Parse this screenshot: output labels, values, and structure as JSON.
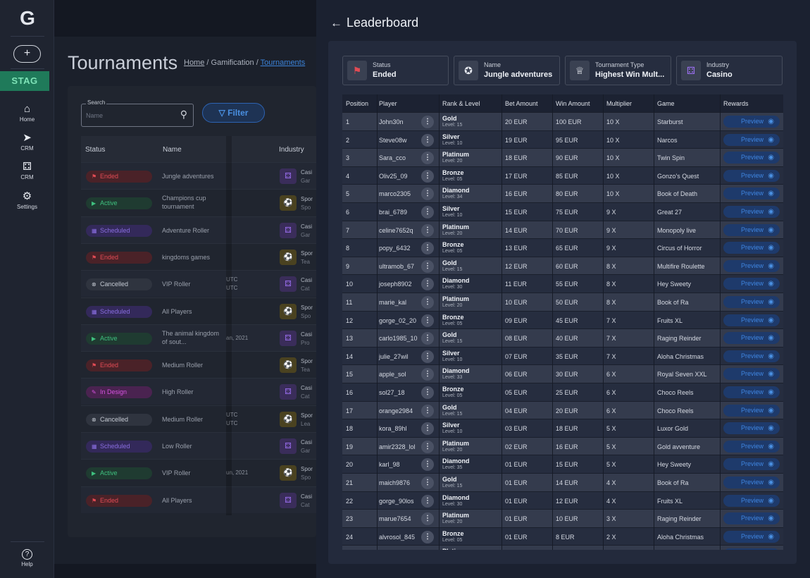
{
  "sidebar": {
    "logo": "G",
    "add_label": "+",
    "env_badge": "STAG",
    "items": [
      {
        "icon": "home-icon",
        "glyph": "⌂",
        "label": "Home"
      },
      {
        "icon": "send-icon",
        "glyph": "➤",
        "label": "CRM"
      },
      {
        "icon": "dice-icon",
        "glyph": "⚃",
        "label": "CRM"
      },
      {
        "icon": "gear-icon",
        "glyph": "⚙",
        "label": "Settings"
      }
    ],
    "help": {
      "icon": "help-icon",
      "glyph": "?",
      "label": "Help"
    }
  },
  "main": {
    "title": "Tournaments",
    "breadcrumb": {
      "home": "Home",
      "sep1": " / ",
      "mid": "Gamification",
      "sep2": " / ",
      "current": "Tournaments"
    },
    "search": {
      "label": "Search",
      "placeholder": "Name"
    },
    "filter_label": "Filter",
    "columns": {
      "status": "Status",
      "name": "Name",
      "industry": "Industry"
    },
    "rows": [
      {
        "status": "Ended",
        "kind": "ended",
        "name": "Jungle adventures",
        "date": "",
        "ind": "cas",
        "ind1": "Casi",
        "ind2": "Gar"
      },
      {
        "status": "Active",
        "kind": "active",
        "name": "Champions cup tournament",
        "date": "",
        "ind": "spo",
        "ind1": "Spor",
        "ind2": "Spo"
      },
      {
        "status": "Scheduled",
        "kind": "scheduled",
        "name": "Adventure Roller",
        "date": "",
        "ind": "cas",
        "ind1": "Casi",
        "ind2": "Gar"
      },
      {
        "status": "Ended",
        "kind": "ended",
        "name": "kingdoms games",
        "date": "",
        "ind": "spo",
        "ind1": "Spor",
        "ind2": "Tea"
      },
      {
        "status": "Cancelled",
        "kind": "cancelled",
        "name": "VIP Roller",
        "date": "UTC\nUTC",
        "ind": "cas",
        "ind1": "Casi",
        "ind2": "Cat"
      },
      {
        "status": "Scheduled",
        "kind": "scheduled",
        "name": "All Players",
        "date": "",
        "ind": "spo",
        "ind1": "Spor",
        "ind2": "Spo"
      },
      {
        "status": "Active",
        "kind": "active",
        "name": "The animal kingdom of sout...",
        "date": "an, 2021",
        "ind": "cas",
        "ind1": "Casi",
        "ind2": "Pro"
      },
      {
        "status": "Ended",
        "kind": "ended",
        "name": "Medium Roller",
        "date": "",
        "ind": "spo",
        "ind1": "Spor",
        "ind2": "Tea"
      },
      {
        "status": "In Design",
        "kind": "design",
        "name": "High Roller",
        "date": "",
        "ind": "cas",
        "ind1": "Casi",
        "ind2": "Cat"
      },
      {
        "status": "Cancelled",
        "kind": "cancelled",
        "name": "Medium Roller",
        "date": "UTC\nUTC",
        "ind": "spo",
        "ind1": "Spor",
        "ind2": "Lea"
      },
      {
        "status": "Scheduled",
        "kind": "scheduled",
        "name": "Low Roller",
        "date": "",
        "ind": "cas",
        "ind1": "Casi",
        "ind2": "Gar"
      },
      {
        "status": "Active",
        "kind": "active",
        "name": "VIP Roller",
        "date": "un, 2021",
        "ind": "spo",
        "ind1": "Spor",
        "ind2": "Spo"
      },
      {
        "status": "Ended",
        "kind": "ended",
        "name": "All Players",
        "date": "",
        "ind": "cas",
        "ind1": "Casi",
        "ind2": "Cat"
      }
    ]
  },
  "panel": {
    "title": "Leaderboard",
    "back_glyph": "←",
    "cards": [
      {
        "icon": "flag-icon",
        "glyph": "⚑",
        "color": "#e14b54",
        "label": "Status",
        "value": "Ended"
      },
      {
        "icon": "star-icon",
        "glyph": "✪",
        "color": "#e8ebf1",
        "label": "Name",
        "value": "Jungle adventures"
      },
      {
        "icon": "trophy-icon",
        "glyph": "♕",
        "color": "#e8ebf1",
        "label": "Tournament Type",
        "value": "Highest Win Mult..."
      },
      {
        "icon": "dice-icon",
        "glyph": "⚃",
        "color": "#9b6ff0",
        "label": "Industry",
        "value": "Casino"
      }
    ],
    "columns": [
      "Position",
      "Player",
      "Rank & Level",
      "Bet Amount",
      "Win Amount",
      "Multiplier",
      "Game",
      "Rewards"
    ],
    "preview_label": "Preview",
    "rows": [
      {
        "pos": "1",
        "player": "John30n",
        "rank": "Gold",
        "level": "Level: 15",
        "bet": "20 EUR",
        "win": "100 EUR",
        "mult": "10 X",
        "game": "Starburst"
      },
      {
        "pos": "2",
        "player": "Steve08w",
        "rank": "Silver",
        "level": "Level: 10",
        "bet": "19 EUR",
        "win": "95 EUR",
        "mult": "10 X",
        "game": "Narcos"
      },
      {
        "pos": "3",
        "player": "Sara_cco",
        "rank": "Platinum",
        "level": "Level: 20",
        "bet": "18 EUR",
        "win": "90 EUR",
        "mult": "10 X",
        "game": "Twin Spin"
      },
      {
        "pos": "4",
        "player": "Oliv25_09",
        "rank": "Bronze",
        "level": "Level: 05",
        "bet": "17 EUR",
        "win": "85 EUR",
        "mult": "10 X",
        "game": "Gonzo's Quest"
      },
      {
        "pos": "5",
        "player": "marco2305",
        "rank": "Diamond",
        "level": "Level: 34",
        "bet": "16 EUR",
        "win": "80 EUR",
        "mult": "10 X",
        "game": "Book of Death"
      },
      {
        "pos": "6",
        "player": "brai_6789",
        "rank": "Silver",
        "level": "Level: 10",
        "bet": "15 EUR",
        "win": "75 EUR",
        "mult": "9 X",
        "game": "Great 27"
      },
      {
        "pos": "7",
        "player": "celine7652q",
        "rank": "Platinum",
        "level": "Level: 20",
        "bet": "14 EUR",
        "win": "70 EUR",
        "mult": "9 X",
        "game": "Monopoly live"
      },
      {
        "pos": "8",
        "player": "popy_6432",
        "rank": "Bronze",
        "level": "Level: 05",
        "bet": "13 EUR",
        "win": "65 EUR",
        "mult": "9 X",
        "game": "Circus of Horror"
      },
      {
        "pos": "9",
        "player": "ultramob_67",
        "rank": "Gold",
        "level": "Level: 15",
        "bet": "12 EUR",
        "win": "60 EUR",
        "mult": "8 X",
        "game": "Multifire Roulette"
      },
      {
        "pos": "10",
        "player": "joseph8902",
        "rank": "Diamond",
        "level": "Level: 30",
        "bet": "11 EUR",
        "win": "55 EUR",
        "mult": "8 X",
        "game": "Hey Sweety"
      },
      {
        "pos": "11",
        "player": "marie_kal",
        "rank": "Platinum",
        "level": "Level: 20",
        "bet": "10 EUR",
        "win": "50 EUR",
        "mult": "8 X",
        "game": "Book of Ra"
      },
      {
        "pos": "12",
        "player": "gorge_02_20",
        "rank": "Bronze",
        "level": "Level: 05",
        "bet": "09 EUR",
        "win": "45 EUR",
        "mult": "7 X",
        "game": "Fruits XL"
      },
      {
        "pos": "13",
        "player": "carlo1985_10",
        "rank": "Gold",
        "level": "Level: 15",
        "bet": "08 EUR",
        "win": "40 EUR",
        "mult": "7 X",
        "game": "Raging Reinder"
      },
      {
        "pos": "14",
        "player": "julie_27wil",
        "rank": "Silver",
        "level": "Level: 10",
        "bet": "07 EUR",
        "win": "35 EUR",
        "mult": "7 X",
        "game": "Aloha Christmas"
      },
      {
        "pos": "15",
        "player": "apple_sol",
        "rank": "Diamond",
        "level": "Level: 33",
        "bet": "06 EUR",
        "win": "30 EUR",
        "mult": "6 X",
        "game": "Royal Seven XXL"
      },
      {
        "pos": "16",
        "player": "sol27_18",
        "rank": "Bronze",
        "level": "Level: 05",
        "bet": "05 EUR",
        "win": "25 EUR",
        "mult": "6 X",
        "game": "Choco Reels"
      },
      {
        "pos": "17",
        "player": "orange2984",
        "rank": "Gold",
        "level": "Level: 15",
        "bet": "04 EUR",
        "win": "20 EUR",
        "mult": "6 X",
        "game": "Choco Reels"
      },
      {
        "pos": "18",
        "player": "kora_89hl",
        "rank": "Silver",
        "level": "Level: 10",
        "bet": "03 EUR",
        "win": "18 EUR",
        "mult": "5 X",
        "game": "Luxor Gold"
      },
      {
        "pos": "19",
        "player": "amir2328_lol",
        "rank": "Platinum",
        "level": "Level: 20",
        "bet": "02 EUR",
        "win": "16 EUR",
        "mult": "5 X",
        "game": "Gold avventure"
      },
      {
        "pos": "20",
        "player": "karl_98",
        "rank": "Diamond",
        "level": "Level: 35",
        "bet": "01 EUR",
        "win": "15 EUR",
        "mult": "5 X",
        "game": "Hey Sweety"
      },
      {
        "pos": "21",
        "player": "maich9876",
        "rank": "Gold",
        "level": "Level: 15",
        "bet": "01 EUR",
        "win": "14 EUR",
        "mult": "4 X",
        "game": "Book of Ra"
      },
      {
        "pos": "22",
        "player": "gorge_90los",
        "rank": "Diamond",
        "level": "Level: 30",
        "bet": "01 EUR",
        "win": "12 EUR",
        "mult": "4 X",
        "game": "Fruits XL"
      },
      {
        "pos": "23",
        "player": "marue7654",
        "rank": "Platinum",
        "level": "Level: 20",
        "bet": "01 EUR",
        "win": "10 EUR",
        "mult": "3 X",
        "game": "Raging Reinder"
      },
      {
        "pos": "24",
        "player": "alvrosol_845",
        "rank": "Bronze",
        "level": "Level: 05",
        "bet": "01 EUR",
        "win": "8 EUR",
        "mult": "2 X",
        "game": "Aloha Christmas"
      },
      {
        "pos": "",
        "player": "",
        "rank": "Platinum",
        "level": "",
        "bet": "",
        "win": "",
        "mult": "",
        "game": ""
      }
    ]
  }
}
